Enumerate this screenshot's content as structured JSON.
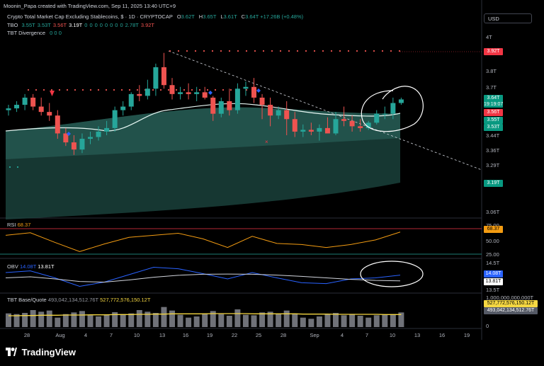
{
  "attribution": "Moonin_Papa created with TradingView.com, Sep 11, 2025 13:40 UTC+9",
  "currency_button": "USD",
  "legend": {
    "symbol": "Crypto Total Market Cap Excluding Stablecoins, $ · 1D · CRYPTOCAP",
    "ohlc": {
      "o_label": "O",
      "o": "3.62T",
      "h_label": "H",
      "h": "3.65T",
      "l_label": "L",
      "l": "3.61T",
      "c_label": "C",
      "c": "3.64T",
      "change": "+17.26B (+0.48%)"
    },
    "tbo": {
      "name": "TBO",
      "values": [
        "3.55T",
        "3.53T",
        "3.56T",
        "3.19T",
        "0",
        "0",
        "0",
        "0",
        "0",
        "0",
        "0",
        "0",
        "2.78T",
        "3.92T"
      ],
      "colors": [
        "#26a69a",
        "#26a69a",
        "#ef5350",
        "#ffffff",
        "#26a69a",
        "#26a69a",
        "#26a69a",
        "#26a69a",
        "#26a69a",
        "#26a69a",
        "#26a69a",
        "#26a69a",
        "#26a69a",
        "#ef5350"
      ]
    },
    "tbt": {
      "name": "TBT Divergence",
      "values": [
        "0",
        "0",
        "0"
      ]
    }
  },
  "price_axis": {
    "ticks": [
      "4T",
      "3.8T",
      "3.7T",
      "3.44T",
      "3.36T",
      "3.29T",
      "3.06T"
    ],
    "labels": [
      {
        "text": "3.92T",
        "bg": "#f23645",
        "color": "#ffffff"
      },
      {
        "text": "3.64T",
        "text2": "19:19:07",
        "bg": "#089981",
        "color": "#ffffff"
      },
      {
        "text": "3.56T",
        "bg": "#f23645",
        "color": "#ffffff"
      },
      {
        "text": "3.55T",
        "bg": "#089981",
        "color": "#ffffff"
      },
      {
        "text": "3.53T",
        "bg": "#089981",
        "color": "#ffffff"
      },
      {
        "text": "3.19T",
        "bg": "#089981",
        "color": "#ffffff"
      }
    ]
  },
  "rsi": {
    "name": "RSI",
    "value": "68.37",
    "ticks": [
      "75.00",
      "50.00",
      "25.00"
    ],
    "value_label": "68.37"
  },
  "obv": {
    "name": "OBV",
    "value1": "14.08T",
    "value2": "13.81T",
    "ticks": [
      "14.5T",
      "13.5T"
    ],
    "labels": [
      "14.08T",
      "13.81T"
    ]
  },
  "tbt_volume": {
    "name": "TBT Base/Quote",
    "value1": "493,042,134,512.76T",
    "value2": "527,772,576,150.12T",
    "ticks": [
      "1,000,000,000,000T",
      "0"
    ],
    "labels": [
      "527,772,576,150.12T",
      "493,042,134,512.76T"
    ]
  },
  "x_axis": {
    "ticks": [
      "28",
      "Aug",
      "4",
      "7",
      "10",
      "13",
      "16",
      "19",
      "22",
      "25",
      "28",
      "Sep",
      "4",
      "7",
      "10",
      "13",
      "16",
      "19"
    ]
  },
  "brand": "TradingView",
  "colors": {
    "up": "#26a69a",
    "down": "#ef5350",
    "rsi": "#f39c12",
    "obv": "#2962ff",
    "volume": "#9598a1",
    "ma": "#e6f7f3"
  },
  "chart_data": [
    {
      "type": "candlestick",
      "title": "Crypto Total Market Cap Excluding Stablecoins, $ · 1D · CRYPTOCAP",
      "x": [
        "Jul 25",
        "Jul 26",
        "Jul 27",
        "Jul 28",
        "Jul 29",
        "Jul 30",
        "Jul 31",
        "Aug 1",
        "Aug 2",
        "Aug 3",
        "Aug 4",
        "Aug 5",
        "Aug 6",
        "Aug 7",
        "Aug 8",
        "Aug 9",
        "Aug 10",
        "Aug 11",
        "Aug 12",
        "Aug 13",
        "Aug 14",
        "Aug 15",
        "Aug 16",
        "Aug 17",
        "Aug 18",
        "Aug 19",
        "Aug 20",
        "Aug 21",
        "Aug 22",
        "Aug 23",
        "Aug 24",
        "Aug 25",
        "Aug 26",
        "Aug 27",
        "Aug 28",
        "Aug 29",
        "Aug 30",
        "Aug 31",
        "Sep 1",
        "Sep 2",
        "Sep 3",
        "Sep 4",
        "Sep 5",
        "Sep 6",
        "Sep 7",
        "Sep 8",
        "Sep 9",
        "Sep 10",
        "Sep 11"
      ],
      "series": [
        {
          "open": [
            3.58,
            3.59,
            3.61,
            3.65,
            3.6,
            3.57,
            3.55,
            3.45,
            3.4,
            3.36,
            3.42,
            3.43,
            3.46,
            3.48,
            3.58,
            3.6,
            3.67,
            3.66,
            3.7,
            3.82,
            3.72,
            3.67,
            3.68,
            3.67,
            3.68,
            3.65,
            3.56,
            3.63,
            3.58,
            3.7,
            3.71,
            3.65,
            3.61,
            3.55,
            3.58,
            3.53,
            3.46,
            3.47,
            3.46,
            3.48,
            3.45,
            3.53,
            3.52,
            3.49,
            3.48,
            3.51,
            3.56,
            3.56,
            3.62
          ],
          "high": [
            3.61,
            3.63,
            3.67,
            3.67,
            3.65,
            3.62,
            3.58,
            3.48,
            3.44,
            3.45,
            3.46,
            3.49,
            3.52,
            3.6,
            3.63,
            3.68,
            3.72,
            3.75,
            3.84,
            3.9,
            3.76,
            3.71,
            3.73,
            3.71,
            3.71,
            3.66,
            3.65,
            3.7,
            3.73,
            3.74,
            3.76,
            3.67,
            3.65,
            3.6,
            3.63,
            3.57,
            3.5,
            3.51,
            3.5,
            3.54,
            3.57,
            3.6,
            3.55,
            3.53,
            3.52,
            3.58,
            3.6,
            3.65,
            3.65
          ],
          "low": [
            3.55,
            3.57,
            3.58,
            3.58,
            3.55,
            3.52,
            3.42,
            3.38,
            3.33,
            3.34,
            3.39,
            3.41,
            3.44,
            3.46,
            3.55,
            3.58,
            3.63,
            3.64,
            3.66,
            3.7,
            3.64,
            3.64,
            3.64,
            3.63,
            3.64,
            3.52,
            3.54,
            3.55,
            3.56,
            3.66,
            3.62,
            3.53,
            3.49,
            3.53,
            3.44,
            3.43,
            3.43,
            3.44,
            3.41,
            3.45,
            3.44,
            3.49,
            3.46,
            3.46,
            3.47,
            3.5,
            3.53,
            3.53,
            3.61
          ],
          "close": [
            3.59,
            3.61,
            3.65,
            3.6,
            3.57,
            3.55,
            3.45,
            3.4,
            3.36,
            3.42,
            3.43,
            3.46,
            3.48,
            3.58,
            3.6,
            3.67,
            3.66,
            3.7,
            3.82,
            3.72,
            3.67,
            3.68,
            3.67,
            3.68,
            3.65,
            3.56,
            3.63,
            3.58,
            3.7,
            3.71,
            3.65,
            3.61,
            3.55,
            3.58,
            3.53,
            3.46,
            3.47,
            3.46,
            3.48,
            3.45,
            3.53,
            3.52,
            3.49,
            3.48,
            3.51,
            3.56,
            3.56,
            3.62,
            3.64
          ]
        }
      ]
    },
    {
      "type": "line",
      "title": "RSI",
      "x": [
        "Jul 25",
        "Jul 28",
        "Jul 31",
        "Aug 3",
        "Aug 6",
        "Aug 9",
        "Aug 12",
        "Aug 15",
        "Aug 18",
        "Aug 21",
        "Aug 24",
        "Aug 27",
        "Aug 30",
        "Sep 2",
        "Sep 5",
        "Sep 8",
        "Sep 11"
      ],
      "series": [
        {
          "name": "RSI",
          "values": [
            62,
            67,
            48,
            30,
            45,
            58,
            62,
            66,
            55,
            38,
            60,
            46,
            44,
            38,
            44,
            53,
            68.37
          ]
        }
      ],
      "ylim": [
        20,
        80
      ]
    },
    {
      "type": "line",
      "title": "OBV",
      "x": [
        "Jul 25",
        "Jul 28",
        "Jul 31",
        "Aug 3",
        "Aug 6",
        "Aug 9",
        "Aug 12",
        "Aug 15",
        "Aug 18",
        "Aug 21",
        "Aug 24",
        "Aug 27",
        "Aug 30",
        "Sep 2",
        "Sep 5",
        "Sep 8",
        "Sep 11"
      ],
      "series": [
        {
          "name": "OBV",
          "values": [
            14.2,
            14.28,
            13.95,
            13.55,
            13.75,
            14.1,
            14.45,
            14.38,
            14.15,
            13.9,
            14.2,
            13.95,
            13.72,
            13.68,
            13.9,
            13.95,
            14.08
          ]
        },
        {
          "name": "OBV MA",
          "values": [
            13.95,
            14.0,
            13.9,
            13.78,
            13.75,
            13.85,
            13.98,
            14.07,
            14.12,
            14.13,
            14.12,
            14.08,
            14.02,
            13.95,
            13.88,
            13.83,
            13.81
          ]
        }
      ],
      "ylim": [
        13.4,
        14.6
      ]
    },
    {
      "type": "bar",
      "title": "TBT Base/Quote",
      "values": [
        0.58,
        0.55,
        0.6,
        0.72,
        0.65,
        0.7,
        0.4,
        0.55,
        0.62,
        0.68,
        0.5,
        0.45,
        0.52,
        0.63,
        0.55,
        0.58,
        0.72,
        0.65,
        0.6,
        0.85,
        0.7,
        0.52,
        0.4,
        0.45,
        0.58,
        0.68,
        0.55,
        0.48,
        0.75,
        0.52,
        0.5,
        0.62,
        0.65,
        0.55,
        0.7,
        0.58,
        0.4,
        0.35,
        0.45,
        0.55,
        0.6,
        0.5,
        0.55,
        0.48,
        0.4,
        0.5,
        0.52,
        0.55,
        0.62
      ],
      "series": [
        {
          "name": "493,042,134,512.76T",
          "values": [
            0.48,
            0.48,
            0.49,
            0.49,
            0.5,
            0.5,
            0.5,
            0.51,
            0.51,
            0.51,
            0.52,
            0.52,
            0.52,
            0.53,
            0.53,
            0.53,
            0.54,
            0.54,
            0.55,
            0.55,
            0.56,
            0.56,
            0.56,
            0.56,
            0.56,
            0.57,
            0.57,
            0.57,
            0.57,
            0.57,
            0.56,
            0.56,
            0.56,
            0.56,
            0.56,
            0.56,
            0.55,
            0.55,
            0.55,
            0.55,
            0.54,
            0.54,
            0.54,
            0.54,
            0.54,
            0.54,
            0.53,
            0.53,
            0.53
          ]
        }
      ],
      "ylim": [
        0,
        1.2
      ]
    }
  ]
}
